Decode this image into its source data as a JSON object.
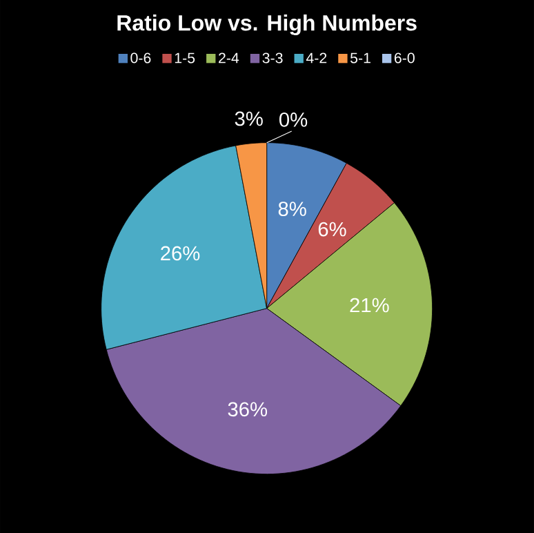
{
  "chart_data": {
    "type": "pie",
    "title": "Ratio Low vs. High Numbers",
    "categories": [
      "0-6",
      "1-5",
      "2-4",
      "3-3",
      "4-2",
      "5-1",
      "6-0"
    ],
    "values": [
      8,
      6,
      21,
      36,
      26,
      3,
      0
    ],
    "colors": [
      "#4f81bd",
      "#c0504d",
      "#9bbb59",
      "#8064a2",
      "#4bacc6",
      "#f79646",
      "#a9c4eb"
    ],
    "value_labels": [
      "8%",
      "6%",
      "21%",
      "36%",
      "26%",
      "3%",
      "0%"
    ],
    "legend": "top"
  }
}
